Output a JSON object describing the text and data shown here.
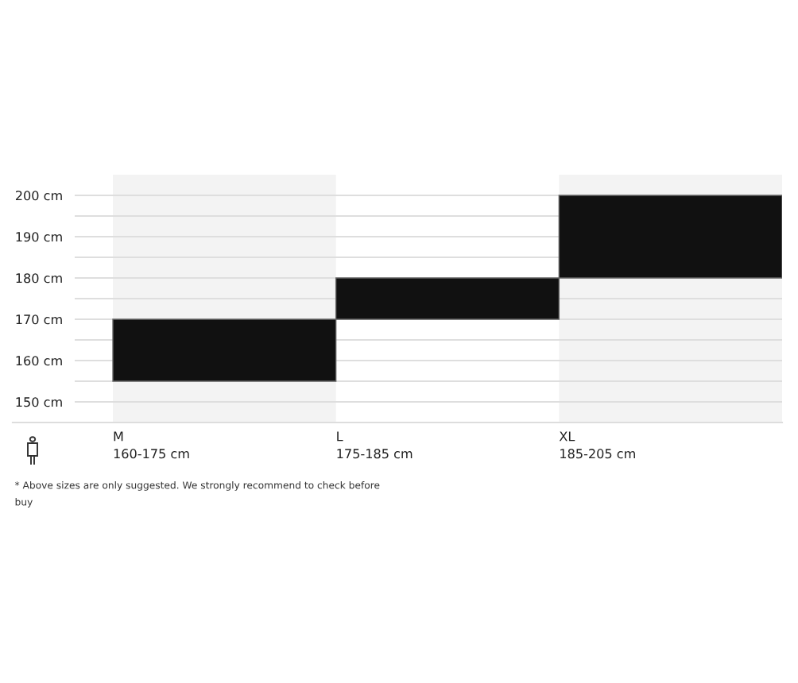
{
  "chart_data": {
    "type": "bar",
    "categories": [
      "M\n160-175 cm",
      "L\n175-185 cm",
      "XL\n185-205 cm"
    ],
    "values": [
      15,
      10,
      20
    ],
    "base": [
      155,
      170,
      180
    ],
    "color": "#111111",
    "ylim": [
      145,
      205
    ],
    "yticks": [
      {
        "value": 150,
        "label": "150 cm"
      },
      {
        "value": 155,
        "label": null
      },
      {
        "value": 160,
        "label": "160 cm"
      },
      {
        "value": 165,
        "label": null
      },
      {
        "value": 170,
        "label": "170 cm"
      },
      {
        "value": 175,
        "label": null
      },
      {
        "value": 180,
        "label": "180 cm"
      },
      {
        "value": 185,
        "label": null
      },
      {
        "value": 190,
        "label": "190 cm"
      },
      {
        "value": 195,
        "label": null
      },
      {
        "value": 200,
        "label": "200 cm"
      }
    ],
    "grid": "y",
    "annotations": [
      "* Above sizes are only suggested. We strongly recommend to check before buy"
    ]
  }
}
